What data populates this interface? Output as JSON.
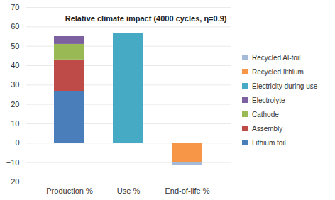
{
  "chart_data": {
    "type": "bar",
    "title": "Relative climate impact (4000 cycles, η=0.9)",
    "categories": [
      "Production %",
      "Use %",
      "End-of-life %"
    ],
    "stacked": true,
    "series": [
      {
        "name": "Lithium foil",
        "color": "#4a7ebb",
        "values": [
          26.5,
          null,
          null
        ]
      },
      {
        "name": "Assembly",
        "color": "#be4b48",
        "values": [
          16.5,
          null,
          null
        ]
      },
      {
        "name": "Cathode",
        "color": "#98b954",
        "values": [
          8,
          null,
          null
        ]
      },
      {
        "name": "Electrolyte",
        "color": "#7d60a0",
        "values": [
          4,
          null,
          null
        ]
      },
      {
        "name": "Electricity during use",
        "color": "#46aac5",
        "values": [
          null,
          56.5,
          null
        ]
      },
      {
        "name": "Recycled lithium",
        "color": "#f79646",
        "values": [
          null,
          null,
          -10
        ]
      },
      {
        "name": "Recycled Al-foil",
        "color": "#a5b9d9",
        "values": [
          null,
          null,
          -1.5
        ]
      }
    ],
    "ylim": [
      -20,
      70
    ],
    "yticks": [
      -20,
      -10,
      0,
      10,
      20,
      30,
      40,
      50,
      60,
      70
    ],
    "grid": true,
    "legend": "right"
  }
}
